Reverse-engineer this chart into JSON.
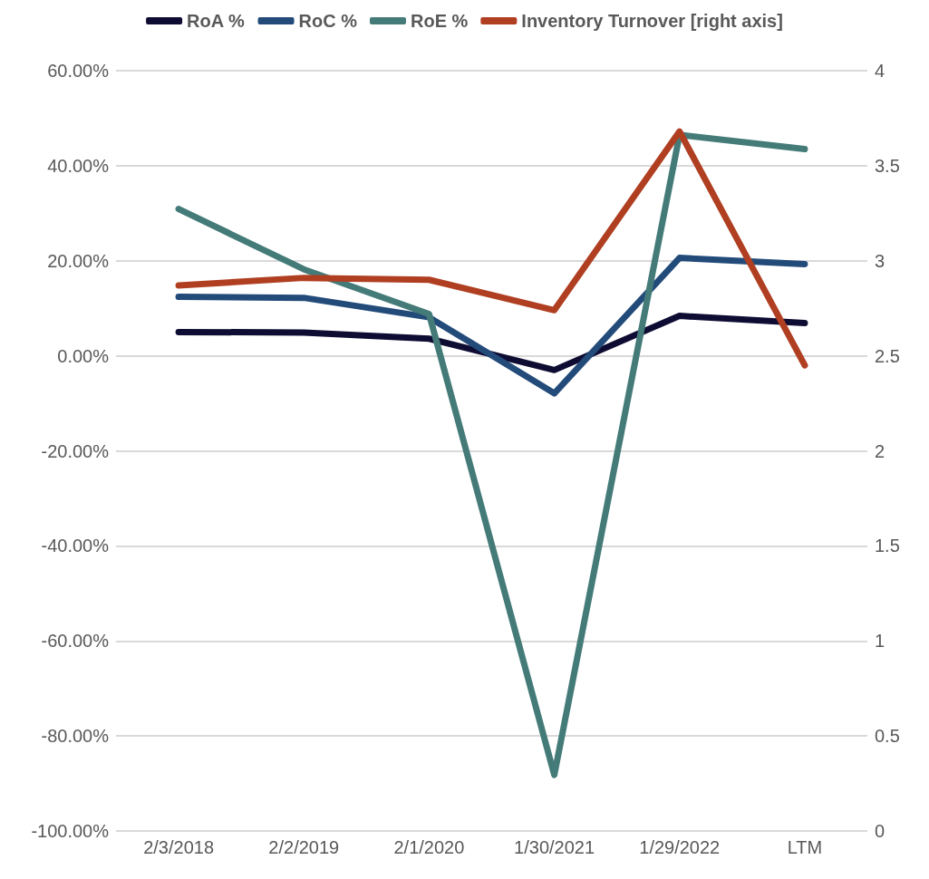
{
  "chart_data": {
    "type": "line",
    "categories": [
      "2/3/2018",
      "2/2/2019",
      "2/1/2020",
      "1/30/2021",
      "1/29/2022",
      "LTM"
    ],
    "series": [
      {
        "name": "RoA %",
        "color": "#0f0c33",
        "values": [
          5.0,
          4.9,
          3.6,
          -3.0,
          8.4,
          6.9
        ]
      },
      {
        "name": "RoC %",
        "color": "#234b7a",
        "values": [
          12.4,
          12.2,
          8.1,
          -7.9,
          20.6,
          19.3
        ]
      },
      {
        "name": "RoE %",
        "color": "#447b78",
        "values": [
          30.9,
          18.2,
          8.8,
          -88.2,
          46.5,
          43.5
        ]
      },
      {
        "name": "Inventory Turnover [right axis]",
        "color": "#b03f22",
        "axis": "y2",
        "values": [
          2.87,
          2.91,
          2.9,
          2.74,
          3.68,
          2.45
        ]
      }
    ],
    "ylim": [
      -100,
      60
    ],
    "yticks": [
      {
        "value": -100,
        "label": "-100.00%"
      },
      {
        "value": -80,
        "label": "-80.00%"
      },
      {
        "value": -60,
        "label": "-60.00%"
      },
      {
        "value": -40,
        "label": "-40.00%"
      },
      {
        "value": -20,
        "label": "-20.00%"
      },
      {
        "value": 0,
        "label": "0.00%"
      },
      {
        "value": 20,
        "label": "20.00%"
      },
      {
        "value": 40,
        "label": "40.00%"
      },
      {
        "value": 60,
        "label": "60.00%"
      }
    ],
    "y2lim": [
      0,
      4
    ],
    "y2ticks": [
      0,
      0.5,
      1,
      1.5,
      2,
      2.5,
      3,
      3.5,
      4
    ],
    "grid": "y",
    "legend": "top",
    "marker": "none",
    "line_style": "solid"
  }
}
